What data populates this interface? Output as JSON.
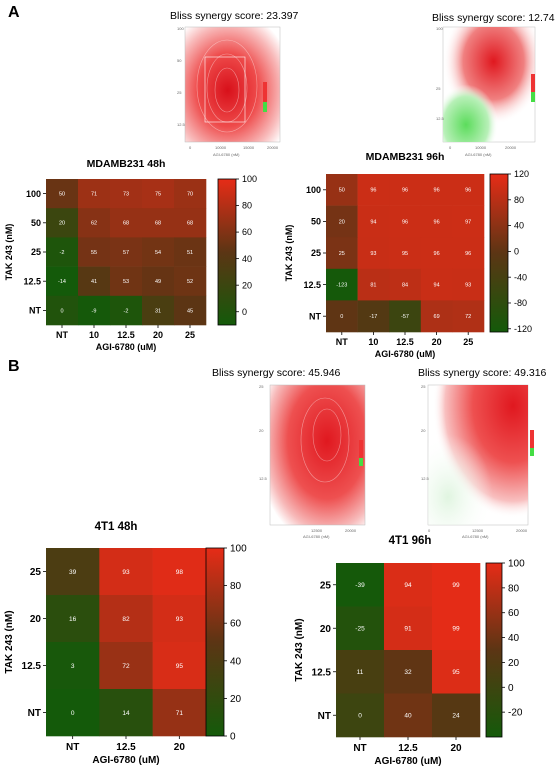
{
  "panels": [
    {
      "letter": "A"
    },
    {
      "letter": "B"
    }
  ],
  "bliss": [
    {
      "text": "Bliss synergy score: 23.397"
    },
    {
      "text": "Bliss synergy score: 12.74"
    },
    {
      "text": "Bliss synergy score: 45.946"
    },
    {
      "text": "Bliss synergy score: 49.316"
    }
  ],
  "colors": {
    "high": "#e62c17",
    "mid": "#5c3514",
    "low": "#145a0a",
    "surface_red": "#e8342a",
    "surface_green": "#40d040"
  },
  "chart_data": [
    {
      "type": "heatmap",
      "title": "MDAMB231 48h",
      "xlabel": "AGI-6780 (uM)",
      "ylabel": "TAK 243 (nM)",
      "x": [
        "NT",
        "10",
        "12.5",
        "20",
        "25"
      ],
      "y": [
        "100",
        "50",
        "25",
        "12.5",
        "NT"
      ],
      "values": [
        [
          50,
          71,
          73,
          75,
          70
        ],
        [
          20,
          62,
          68,
          68,
          68
        ],
        [
          -2,
          55,
          57,
          54,
          51
        ],
        [
          -14,
          41,
          53,
          49,
          52
        ],
        [
          0,
          -9,
          -2,
          31,
          45
        ]
      ],
      "colorbar_ticks": [
        100,
        80,
        60,
        40,
        20,
        0
      ],
      "zlim": [
        -10,
        100
      ]
    },
    {
      "type": "heatmap",
      "title": "MDAMB231 96h",
      "xlabel": "AGI-6780 (uM)",
      "ylabel": "TAK 243 (nM)",
      "x": [
        "NT",
        "10",
        "12.5",
        "20",
        "25"
      ],
      "y": [
        "100",
        "50",
        "25",
        "12.5",
        "NT"
      ],
      "values": [
        [
          50,
          96,
          96,
          96,
          96
        ],
        [
          20,
          94,
          96,
          96,
          97
        ],
        [
          25,
          93,
          95,
          96,
          96
        ],
        [
          -123,
          81,
          84,
          94,
          93
        ],
        [
          0,
          -17,
          -57,
          69,
          72
        ]
      ],
      "colorbar_ticks": [
        120,
        80,
        40,
        0,
        -40,
        -80,
        -120
      ],
      "zlim": [
        -125,
        120
      ]
    },
    {
      "type": "heatmap",
      "title": "4T1 48h",
      "xlabel": "AGI-6780 (uM)",
      "ylabel": "TAK 243 (nM)",
      "x": [
        "NT",
        "12.5",
        "20"
      ],
      "y": [
        "25",
        "20",
        "12.5",
        "NT"
      ],
      "values": [
        [
          39,
          93,
          98
        ],
        [
          16,
          82,
          93
        ],
        [
          3,
          72,
          95
        ],
        [
          0,
          14,
          71
        ]
      ],
      "colorbar_ticks": [
        100,
        80,
        60,
        40,
        20,
        0
      ],
      "zlim": [
        0,
        100
      ]
    },
    {
      "type": "heatmap",
      "title": "4T1 96h",
      "xlabel": "AGI-6780 (uM)",
      "ylabel": "TAK 243 (nM)",
      "x": [
        "NT",
        "12.5",
        "20"
      ],
      "y": [
        "25",
        "20",
        "12.5",
        "NT"
      ],
      "values": [
        [
          -39,
          94,
          99
        ],
        [
          -25,
          91,
          99
        ],
        [
          11,
          32,
          95
        ],
        [
          0,
          40,
          24
        ]
      ],
      "colorbar_ticks": [
        100,
        80,
        60,
        40,
        20,
        0,
        -20
      ],
      "zlim": [
        -40,
        100
      ]
    }
  ]
}
